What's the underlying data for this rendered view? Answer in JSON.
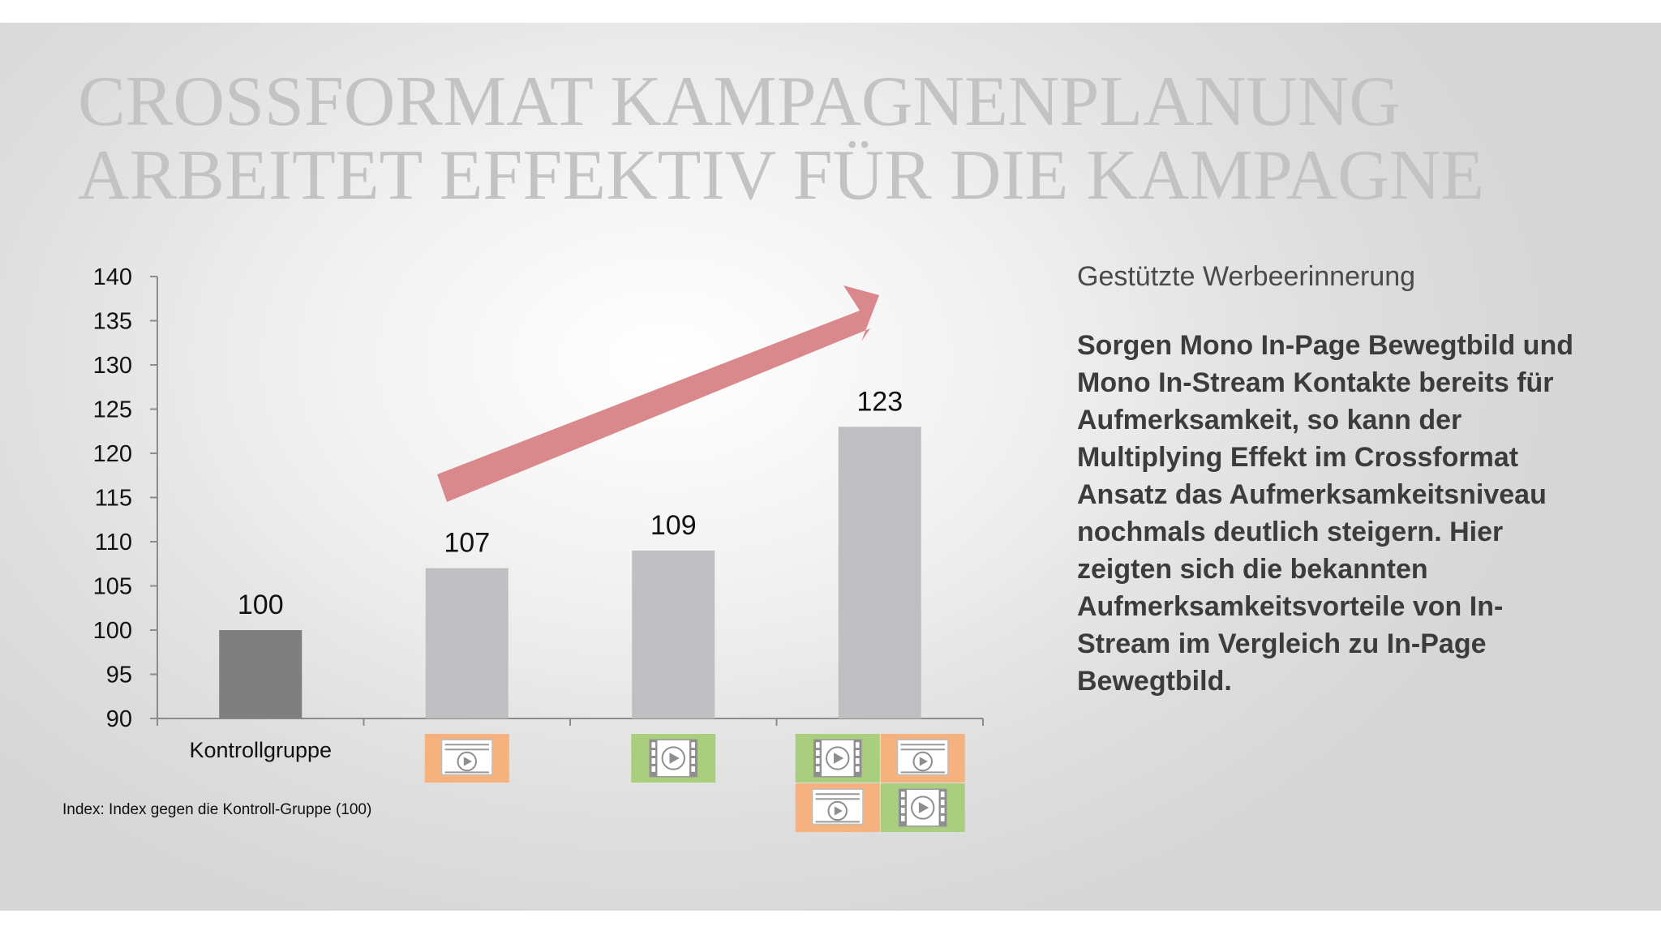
{
  "title": {
    "line1": "CROSSFORMAT KAMPAGNENPLANUNG",
    "line2": "ARBEITET EFFEKTIV FÜR DIE KAMPAGNE"
  },
  "panel": {
    "heading": "Gestützte Werbeerinnerung",
    "body": "Sorgen Mono In-Page Bewegtbild und Mono In-Stream Kontakte bereits für Aufmerksamkeit, so kann der Multiplying Effekt im Crossformat Ansatz das Aufmerksamkeitsniveau nochmals deutlich steigern. Hier zeigten sich die bekannten Aufmerksamkeitsvorteile von In-Stream im Vergleich zu In-Page Bewegtbild."
  },
  "footnote": "Index: Index gegen die Kontroll-Gruppe (100)",
  "colors": {
    "bar_control": "#7f7f7f",
    "bar_other": "#bfbec0",
    "arrow": "#d9898b",
    "inpage_icon_bg": "#f6b27e",
    "instream_icon_bg": "#a9cf7e"
  },
  "chart_data": {
    "type": "bar",
    "categories": [
      "Kontrollgruppe",
      "",
      "",
      ""
    ],
    "category_icons": [
      "",
      "in-page-video-icon",
      "in-stream-video-icon",
      "crossformat-icon-grid"
    ],
    "values": [
      100,
      107,
      109,
      123
    ],
    "data_labels": [
      "100",
      "107",
      "109",
      "123"
    ],
    "title": "",
    "xlabel": "",
    "ylabel": "",
    "ylim": [
      90,
      140
    ],
    "yticks": [
      90,
      95,
      100,
      105,
      110,
      115,
      120,
      125,
      130,
      135,
      140
    ],
    "grid": false,
    "legend": "none",
    "annotations": [
      "trend-arrow"
    ]
  }
}
